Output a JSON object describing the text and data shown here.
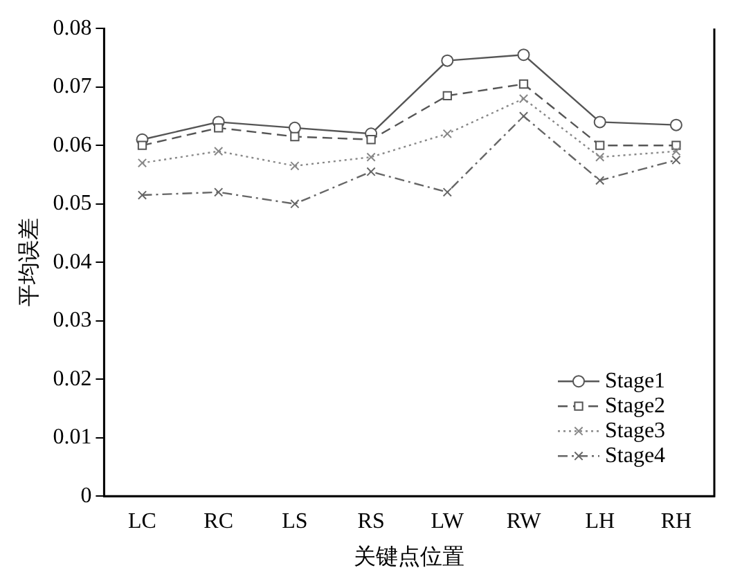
{
  "chart_data": {
    "type": "line",
    "xlabel": "关键点位置",
    "ylabel": "平均误差",
    "categories": [
      "LC",
      "RC",
      "LS",
      "RS",
      "LW",
      "RW",
      "LH",
      "RH"
    ],
    "series": [
      {
        "name": "Stage1",
        "color": "#555555",
        "marker": "circle",
        "line_style": "solid",
        "values": [
          0.061,
          0.064,
          0.063,
          0.062,
          0.0745,
          0.0755,
          0.064,
          0.0635
        ]
      },
      {
        "name": "Stage2",
        "color": "#555555",
        "marker": "square",
        "line_style": "dashed",
        "values": [
          0.06,
          0.063,
          0.0615,
          0.061,
          0.0685,
          0.0705,
          0.06,
          0.06
        ]
      },
      {
        "name": "Stage3",
        "color": "#888888",
        "marker": "cross",
        "line_style": "dotted",
        "values": [
          0.057,
          0.059,
          0.0565,
          0.058,
          0.062,
          0.068,
          0.058,
          0.059
        ]
      },
      {
        "name": "Stage4",
        "color": "#666666",
        "marker": "cross",
        "line_style": "dashdot",
        "values": [
          0.0515,
          0.052,
          0.05,
          0.0555,
          0.052,
          0.065,
          0.054,
          0.0575
        ]
      }
    ],
    "ylim": [
      0,
      0.08
    ],
    "yticks": [
      0,
      0.01,
      0.02,
      0.03,
      0.04,
      0.05,
      0.06,
      0.07,
      0.08
    ],
    "grid": false,
    "legend": "bottom right"
  }
}
